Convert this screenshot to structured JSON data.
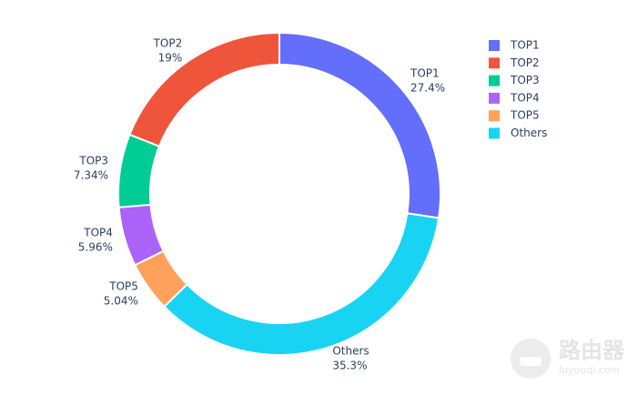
{
  "chart_data": {
    "type": "donut",
    "categories": [
      "TOP1",
      "TOP2",
      "TOP3",
      "TOP4",
      "TOP5",
      "Others"
    ],
    "values": [
      27.4,
      19,
      7.34,
      5.96,
      5.04,
      35.3
    ],
    "value_labels": [
      "27.4%",
      "19%",
      "7.34%",
      "5.96%",
      "5.04%",
      "35.3%"
    ],
    "colors": [
      "#636efa",
      "#EF553B",
      "#00cc96",
      "#ab63fa",
      "#FFA15A",
      "#19d3f3"
    ],
    "legend": "top-right"
  },
  "watermark": {
    "name": "路由器",
    "site": "luyouqi.com"
  }
}
